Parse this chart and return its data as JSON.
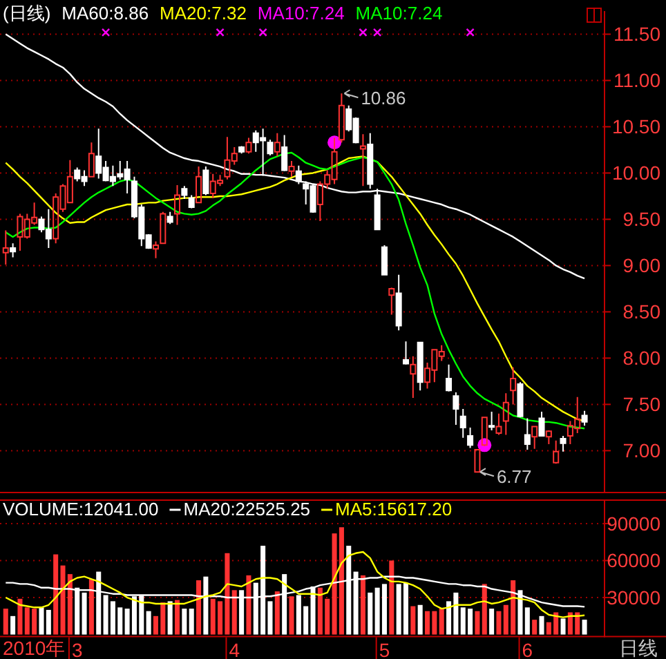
{
  "chart_data": [
    {
      "type": "candlestick",
      "title": "(日线)",
      "legend": "top left",
      "grid": "y",
      "tick_labels": "y",
      "ylim": [
        6.57,
        11.75
      ],
      "yticks": [
        {
          "value": 7,
          "label": "7.00"
        },
        {
          "value": 7.5,
          "label": "7.50"
        },
        {
          "value": 8,
          "label": "8.00"
        },
        {
          "value": 8.5,
          "label": "8.50"
        },
        {
          "value": 9,
          "label": "9.00"
        },
        {
          "value": 9.5,
          "label": "9.50"
        },
        {
          "value": 10,
          "label": "10.00"
        },
        {
          "value": 10.5,
          "label": "10.50"
        },
        {
          "value": 11,
          "label": "11.00"
        },
        {
          "value": 11.5,
          "label": "11.50"
        }
      ],
      "categories": [
        null,
        null,
        null,
        null,
        null,
        null,
        null,
        null,
        null,
        null,
        "3",
        null,
        null,
        null,
        null,
        null,
        null,
        null,
        null,
        null,
        null,
        null,
        null,
        null,
        null,
        null,
        null,
        null,
        null,
        null,
        null,
        null,
        "4",
        null,
        null,
        null,
        null,
        null,
        null,
        null,
        null,
        null,
        null,
        null,
        null,
        null,
        null,
        null,
        null,
        null,
        null,
        null,
        null,
        "5",
        null,
        null,
        null,
        null,
        null,
        null,
        null,
        null,
        null,
        null,
        null,
        null,
        null,
        null,
        null,
        null,
        null,
        null,
        null,
        "6",
        null,
        null,
        null,
        null,
        null,
        null,
        null,
        null
      ],
      "ohlc": [
        [
          9.14,
          9.38,
          9.01,
          9.19
        ],
        [
          9.19,
          9.24,
          9.09,
          9.15
        ],
        [
          9.31,
          9.56,
          9.16,
          9.53
        ],
        [
          9.31,
          9.56,
          9.29,
          9.5
        ],
        [
          9.46,
          9.68,
          9.44,
          9.52
        ],
        [
          9.5,
          9.53,
          9.36,
          9.39
        ],
        [
          9.39,
          9.61,
          9.19,
          9.29
        ],
        [
          9.29,
          9.78,
          9.24,
          9.74
        ],
        [
          9.61,
          9.88,
          9.58,
          9.86
        ],
        [
          9.68,
          10.14,
          9.68,
          9.96
        ],
        [
          10.03,
          10.06,
          9.91,
          9.94
        ],
        [
          9.96,
          10.03,
          9.86,
          9.91
        ],
        [
          9.96,
          10.33,
          9.96,
          10.21
        ],
        [
          10.18,
          10.48,
          9.94,
          10.0
        ],
        [
          10.06,
          10.13,
          9.91,
          9.92
        ],
        [
          9.96,
          10.08,
          9.86,
          9.91
        ],
        [
          9.99,
          10.13,
          9.93,
          9.96
        ],
        [
          10.04,
          10.13,
          9.78,
          9.93
        ],
        [
          9.91,
          9.96,
          9.51,
          9.53
        ],
        [
          9.63,
          9.66,
          9.21,
          9.29
        ],
        [
          9.33,
          9.34,
          9.18,
          9.19
        ],
        [
          9.18,
          9.26,
          9.08,
          9.22
        ],
        [
          9.24,
          9.58,
          9.24,
          9.56
        ],
        [
          9.53,
          9.58,
          9.45,
          9.47
        ],
        [
          9.56,
          9.87,
          9.44,
          9.76
        ],
        [
          9.83,
          9.86,
          9.72,
          9.76
        ],
        [
          9.73,
          9.76,
          9.62,
          9.63
        ],
        [
          9.68,
          10.07,
          9.68,
          9.96
        ],
        [
          10.03,
          10.07,
          9.76,
          9.78
        ],
        [
          9.78,
          9.99,
          9.73,
          9.91
        ],
        [
          9.89,
          9.98,
          9.86,
          9.92
        ],
        [
          9.96,
          10.39,
          9.93,
          10.14
        ],
        [
          10.13,
          10.28,
          10.09,
          10.21
        ],
        [
          10.28,
          10.29,
          10.21,
          10.23
        ],
        [
          10.23,
          10.38,
          10.21,
          10.33
        ],
        [
          10.43,
          10.46,
          10.23,
          10.33
        ],
        [
          10.38,
          10.48,
          9.97,
          10.35
        ],
        [
          10.33,
          10.36,
          10.19,
          10.21
        ],
        [
          10.23,
          10.43,
          10.18,
          10.33
        ],
        [
          10.28,
          10.41,
          10.02,
          10.03
        ],
        [
          10.02,
          10.13,
          9.96,
          10.07
        ],
        [
          10.02,
          10.08,
          9.88,
          9.91
        ],
        [
          9.88,
          9.91,
          9.66,
          9.83
        ],
        [
          9.86,
          9.88,
          9.57,
          9.58
        ],
        [
          9.66,
          9.91,
          9.48,
          9.88
        ],
        [
          9.88,
          10.03,
          9.83,
          9.98
        ],
        [
          9.93,
          10.38,
          9.88,
          10.23
        ],
        [
          10.36,
          10.86,
          10.33,
          10.73
        ],
        [
          10.69,
          10.73,
          10.45,
          10.47
        ],
        [
          10.59,
          10.6,
          10.32,
          10.33
        ],
        [
          10.26,
          10.42,
          9.86,
          10.29
        ],
        [
          10.31,
          10.43,
          9.83,
          9.88
        ],
        [
          9.76,
          9.83,
          9.39,
          9.39
        ],
        [
          9.2,
          9.22,
          8.9,
          8.9
        ],
        [
          8.68,
          8.76,
          8.47,
          8.75
        ],
        [
          8.7,
          8.9,
          8.3,
          8.35
        ],
        [
          7.98,
          8.18,
          7.93,
          7.94
        ],
        [
          7.83,
          8.02,
          7.57,
          7.93
        ],
        [
          8.17,
          8.17,
          7.65,
          7.74
        ],
        [
          7.74,
          7.95,
          7.67,
          7.89
        ],
        [
          7.87,
          8.09,
          7.74,
          8.09
        ],
        [
          8.02,
          8.14,
          7.97,
          8.07
        ],
        [
          7.78,
          7.93,
          7.64,
          7.65
        ],
        [
          7.59,
          7.63,
          7.28,
          7.45
        ],
        [
          7.37,
          7.45,
          7.14,
          7.25
        ],
        [
          7.16,
          7.25,
          7.03,
          7.06
        ],
        [
          6.77,
          7.01,
          6.77,
          7.01
        ],
        [
          7.06,
          7.36,
          7.05,
          7.36
        ],
        [
          7.27,
          7.42,
          7.22,
          7.26
        ],
        [
          7.19,
          7.4,
          7.17,
          7.26
        ],
        [
          7.32,
          7.62,
          7.17,
          7.52
        ],
        [
          7.65,
          7.9,
          7.5,
          7.78
        ],
        [
          7.72,
          7.74,
          7.36,
          7.37
        ],
        [
          7.17,
          7.35,
          7.01,
          7.07
        ],
        [
          7.15,
          7.26,
          7.02,
          7.26
        ],
        [
          7.35,
          7.42,
          7.16,
          7.16
        ],
        [
          7.15,
          7.22,
          7.07,
          7.21
        ],
        [
          6.87,
          7.11,
          6.86,
          6.99
        ],
        [
          7.13,
          7.16,
          6.99,
          7.08
        ],
        [
          7.16,
          7.32,
          7.07,
          7.27
        ],
        [
          7.24,
          7.58,
          7.19,
          7.34
        ],
        [
          7.38,
          7.43,
          7.27,
          7.31
        ]
      ],
      "colors": [
        "#ff3232",
        "#ffffff",
        "#ff3232",
        "#ff3232",
        "#ff3232",
        "#ffffff",
        "#ffffff",
        "#ff3232",
        "#ff3232",
        "#ff3232",
        "#ffffff",
        "#ffffff",
        "#ff3232",
        "#ffffff",
        "#ffffff",
        "#ffffff",
        "#ffffff",
        "#ffffff",
        "#ffffff",
        "#ffffff",
        "#ffffff",
        "#ff3232",
        "#ff3232",
        "#ffffff",
        "#ff3232",
        "#ffffff",
        "#ffffff",
        "#ff3232",
        "#ffffff",
        "#ff3232",
        "#ff3232",
        "#ff3232",
        "#ff3232",
        "#ffffff",
        "#ff3232",
        "#ffffff",
        "#ffffff",
        "#ffffff",
        "#ff3232",
        "#ffffff",
        "#ff3232",
        "#ffffff",
        "#ffffff",
        "#ffffff",
        "#ff3232",
        "#ff3232",
        "#ff3232",
        "#ff3232",
        "#ffffff",
        "#ffffff",
        "#ff3232",
        "#ffffff",
        "#ffffff",
        "#ffffff",
        "#ff3232",
        "#ffffff",
        "#ffffff",
        "#ff3232",
        "#ffffff",
        "#ff3232",
        "#ff3232",
        "#ff3232",
        "#ffffff",
        "#ffffff",
        "#ffffff",
        "#ffffff",
        "#ff3232",
        "#ff3232",
        "#ffffff",
        "#ff3232",
        "#ff3232",
        "#ff3232",
        "#ffffff",
        "#ffffff",
        "#ff3232",
        "#ffffff",
        "#ff3232",
        "#ff3232",
        "#ffffff",
        "#ff3232",
        "#ff3232",
        "#ffffff"
      ],
      "series": [
        {
          "name": "MA60:8.86",
          "type": "line",
          "color": "#ffffff",
          "values": [
            11.5,
            11.45,
            11.4,
            11.35,
            11.31,
            11.27,
            11.23,
            11.18,
            11.14,
            11.07,
            10.98,
            10.91,
            10.86,
            10.81,
            10.77,
            10.72,
            10.64,
            10.57,
            10.51,
            10.45,
            10.39,
            10.33,
            10.27,
            10.22,
            10.19,
            10.16,
            10.14,
            10.13,
            10.11,
            10.09,
            10.07,
            10.04,
            10.02,
            9.99,
            9.99,
            9.98,
            9.98,
            9.97,
            9.96,
            9.95,
            9.93,
            9.91,
            9.9,
            9.88,
            9.87,
            9.84,
            9.82,
            9.8,
            9.79,
            9.79,
            9.8,
            9.8,
            9.81,
            9.8,
            9.79,
            9.78,
            9.76,
            9.74,
            9.72,
            9.7,
            9.68,
            9.66,
            9.63,
            9.61,
            9.58,
            9.55,
            9.51,
            9.47,
            9.43,
            9.39,
            9.35,
            9.31,
            9.26,
            9.21,
            9.16,
            9.11,
            9.06,
            9.0,
            8.96,
            8.93,
            8.89,
            8.86
          ]
        },
        {
          "name": "MA20:7.32",
          "type": "line",
          "color": "#ffff00",
          "values": [
            10.11,
            10.04,
            9.96,
            9.89,
            9.81,
            9.73,
            9.65,
            9.57,
            9.51,
            9.46,
            9.47,
            9.47,
            9.52,
            9.56,
            9.6,
            9.62,
            9.64,
            9.66,
            9.66,
            9.67,
            9.68,
            9.68,
            9.7,
            9.71,
            9.72,
            9.73,
            9.73,
            9.74,
            9.74,
            9.74,
            9.75,
            9.75,
            9.76,
            9.77,
            9.79,
            9.81,
            9.83,
            9.85,
            9.88,
            9.92,
            9.95,
            9.98,
            9.99,
            10.0,
            10.02,
            10.04,
            10.08,
            10.12,
            10.16,
            10.17,
            10.18,
            10.15,
            10.12,
            10.04,
            9.96,
            9.86,
            9.76,
            9.66,
            9.56,
            9.44,
            9.33,
            9.23,
            9.12,
            9.02,
            8.89,
            8.74,
            8.59,
            8.45,
            8.31,
            8.18,
            8.02,
            7.87,
            7.79,
            7.7,
            7.64,
            7.57,
            7.52,
            7.47,
            7.42,
            7.38,
            7.34,
            7.32
          ]
        },
        {
          "name": "MA10:7.24",
          "type": "scatter",
          "marker": "circle",
          "color": "#ff00ff",
          "values": [
            null,
            null,
            null,
            null,
            null,
            null,
            null,
            null,
            null,
            null,
            null,
            null,
            null,
            null,
            null,
            null,
            null,
            null,
            null,
            null,
            null,
            null,
            null,
            null,
            null,
            null,
            null,
            null,
            null,
            null,
            null,
            null,
            null,
            null,
            null,
            null,
            null,
            null,
            null,
            null,
            null,
            null,
            null,
            null,
            null,
            null,
            10.33,
            null,
            null,
            null,
            null,
            null,
            null,
            null,
            null,
            null,
            null,
            null,
            null,
            null,
            null,
            null,
            null,
            null,
            null,
            null,
            null,
            7.06,
            null,
            null,
            null,
            null,
            null,
            null,
            null,
            null,
            null,
            null,
            null,
            null,
            null,
            null
          ]
        },
        {
          "name": "MA10:7.24",
          "type": "line",
          "color": "#00ff00",
          "values": [
            9.36,
            9.31,
            9.36,
            9.4,
            9.41,
            9.41,
            9.4,
            9.41,
            9.47,
            9.54,
            9.61,
            9.68,
            9.74,
            9.79,
            9.83,
            9.87,
            9.91,
            9.93,
            9.91,
            9.85,
            9.79,
            9.73,
            9.68,
            9.63,
            9.58,
            9.56,
            9.55,
            9.56,
            9.59,
            9.65,
            9.7,
            9.77,
            9.83,
            9.89,
            9.96,
            10.03,
            10.09,
            10.15,
            10.18,
            10.21,
            10.22,
            10.17,
            10.11,
            10.08,
            10.05,
            10.04,
            10.07,
            10.1,
            10.13,
            10.15,
            10.17,
            10.15,
            10.12,
            10.0,
            9.88,
            9.71,
            9.45,
            9.22,
            8.98,
            8.79,
            8.48,
            8.26,
            8.09,
            7.94,
            7.8,
            7.7,
            7.62,
            7.56,
            7.52,
            7.48,
            7.43,
            7.38,
            7.36,
            7.33,
            7.32,
            7.31,
            7.31,
            7.3,
            7.28,
            7.26,
            7.25,
            7.24
          ]
        },
        {
          "type": "scatter",
          "marker": "cross",
          "color": "#ff00ff",
          "values": [
            null,
            null,
            null,
            null,
            null,
            null,
            null,
            null,
            null,
            null,
            null,
            null,
            null,
            null,
            11.52,
            null,
            null,
            null,
            null,
            null,
            null,
            null,
            null,
            null,
            null,
            null,
            null,
            null,
            null,
            null,
            11.52,
            null,
            null,
            null,
            null,
            null,
            11.52,
            null,
            null,
            null,
            null,
            null,
            null,
            null,
            null,
            null,
            null,
            null,
            null,
            null,
            11.52,
            null,
            11.52,
            null,
            null,
            null,
            null,
            null,
            null,
            null,
            null,
            null,
            null,
            null,
            null,
            11.52,
            null,
            null,
            null,
            null,
            null,
            null,
            null,
            null,
            null,
            null,
            null,
            null,
            null,
            null,
            null,
            null
          ]
        }
      ],
      "annotations": [
        "10.86",
        "6.77"
      ]
    },
    {
      "type": "bar",
      "legend": "top left",
      "grid": "y",
      "ylim": [
        0,
        109000
      ],
      "yticks": [
        30000,
        60000,
        90000
      ],
      "categories": [
        null,
        null,
        null,
        null,
        null,
        null,
        null,
        null,
        null,
        null,
        "3",
        null,
        null,
        null,
        null,
        null,
        null,
        null,
        null,
        null,
        null,
        null,
        null,
        null,
        null,
        null,
        null,
        null,
        null,
        null,
        null,
        null,
        "4",
        null,
        null,
        null,
        null,
        null,
        null,
        null,
        null,
        null,
        null,
        null,
        null,
        null,
        null,
        null,
        null,
        null,
        null,
        null,
        null,
        "5",
        null,
        null,
        null,
        null,
        null,
        null,
        null,
        null,
        null,
        null,
        null,
        null,
        null,
        null,
        null,
        null,
        null,
        null,
        null,
        "6",
        null,
        null,
        null,
        null,
        null,
        null,
        null,
        null
      ],
      "series": [
        {
          "name": "VOLUME:12041.00",
          "type": "bar",
          "color": "#ffffff",
          "values": [
            21000,
            15000,
            29000,
            22000,
            21000,
            22000,
            20000,
            65000,
            56000,
            49000,
            38000,
            34000,
            45000,
            51000,
            32000,
            27000,
            22000,
            21000,
            31000,
            32000,
            19000,
            15000,
            26000,
            27000,
            28000,
            21000,
            21000,
            44000,
            47000,
            29000,
            27000,
            66000,
            36000,
            36000,
            48000,
            42000,
            72000,
            27000,
            35000,
            49000,
            31000,
            32000,
            23000,
            39000,
            38000,
            29000,
            82000,
            87000,
            72000,
            51000,
            48000,
            34000,
            38000,
            41000,
            60000,
            41000,
            42000,
            23000,
            24000,
            19000,
            19000,
            21000,
            27000,
            34000,
            22000,
            21000,
            19000,
            41000,
            21000,
            19000,
            24000,
            44000,
            36000,
            22000,
            12000,
            15000,
            10000,
            18000,
            13000,
            18000,
            18000,
            12041
          ],
          "colors": [
            "#ff3232",
            "#ffffff",
            "#ff3232",
            "#ff3232",
            "#ff3232",
            "#ffffff",
            "#ffffff",
            "#ff3232",
            "#ff3232",
            "#ff3232",
            "#ffffff",
            "#ffffff",
            "#ff3232",
            "#ffffff",
            "#ffffff",
            "#ffffff",
            "#ffffff",
            "#ffffff",
            "#ffffff",
            "#ffffff",
            "#ffffff",
            "#ff3232",
            "#ff3232",
            "#ffffff",
            "#ff3232",
            "#ffffff",
            "#ffffff",
            "#ff3232",
            "#ffffff",
            "#ff3232",
            "#ff3232",
            "#ff3232",
            "#ff3232",
            "#ffffff",
            "#ff3232",
            "#ffffff",
            "#ffffff",
            "#ffffff",
            "#ff3232",
            "#ffffff",
            "#ff3232",
            "#ffffff",
            "#ffffff",
            "#ffffff",
            "#ff3232",
            "#ff3232",
            "#ff3232",
            "#ff3232",
            "#ffffff",
            "#ffffff",
            "#ff3232",
            "#ffffff",
            "#ffffff",
            "#ffffff",
            "#ff3232",
            "#ffffff",
            "#ffffff",
            "#ff3232",
            "#ffffff",
            "#ff3232",
            "#ff3232",
            "#ff3232",
            "#ffffff",
            "#ffffff",
            "#ffffff",
            "#ffffff",
            "#ff3232",
            "#ff3232",
            "#ffffff",
            "#ff3232",
            "#ff3232",
            "#ff3232",
            "#ffffff",
            "#ffffff",
            "#ff3232",
            "#ffffff",
            "#ff3232",
            "#ff3232",
            "#ffffff",
            "#ff3232",
            "#ff3232",
            "#ffffff"
          ]
        },
        {
          "name": "MA20:22525.25",
          "type": "line",
          "color": "#ffffff",
          "values": [
            42000,
            42000,
            41000,
            41000,
            40000,
            38000,
            38000,
            37000,
            37000,
            37000,
            36000,
            36000,
            36000,
            35000,
            34000,
            33000,
            33000,
            32000,
            32000,
            32000,
            32000,
            32000,
            32000,
            32000,
            32000,
            32000,
            32000,
            31000,
            31000,
            31000,
            31000,
            30000,
            30000,
            30000,
            30000,
            30000,
            31000,
            31000,
            32000,
            33000,
            34000,
            35000,
            37000,
            38000,
            40000,
            41000,
            42000,
            43000,
            44000,
            45000,
            45000,
            46000,
            46000,
            47000,
            47000,
            47000,
            46000,
            46000,
            45000,
            44000,
            43000,
            42000,
            41000,
            41000,
            40000,
            40000,
            39000,
            39000,
            37000,
            36000,
            35000,
            34000,
            32000,
            30000,
            28000,
            26000,
            25000,
            24000,
            23000,
            23000,
            23000,
            22525.25
          ]
        },
        {
          "name": "MA5:15617.20",
          "type": "line",
          "color": "#ffff00",
          "values": [
            30000,
            27000,
            24000,
            23000,
            22000,
            22000,
            24000,
            30000,
            37000,
            43000,
            46000,
            47000,
            45000,
            43000,
            40000,
            37000,
            34000,
            30000,
            28000,
            26000,
            26000,
            25000,
            25000,
            25000,
            25000,
            25000,
            27000,
            29000,
            31000,
            32000,
            34000,
            41000,
            40000,
            39000,
            42000,
            45000,
            46000,
            46000,
            45000,
            41000,
            37000,
            33000,
            33000,
            33000,
            32000,
            34000,
            46000,
            58000,
            64000,
            66000,
            67000,
            62000,
            51000,
            46000,
            43000,
            43000,
            42000,
            40000,
            37000,
            31000,
            24000,
            21000,
            22000,
            24000,
            24000,
            24000,
            26000,
            27000,
            25000,
            26000,
            28000,
            30000,
            29000,
            28000,
            26000,
            20000,
            16000,
            15000,
            14000,
            15000,
            15000,
            15617.2
          ]
        }
      ],
      "annotations": [
        "日线",
        "2010年"
      ]
    }
  ]
}
